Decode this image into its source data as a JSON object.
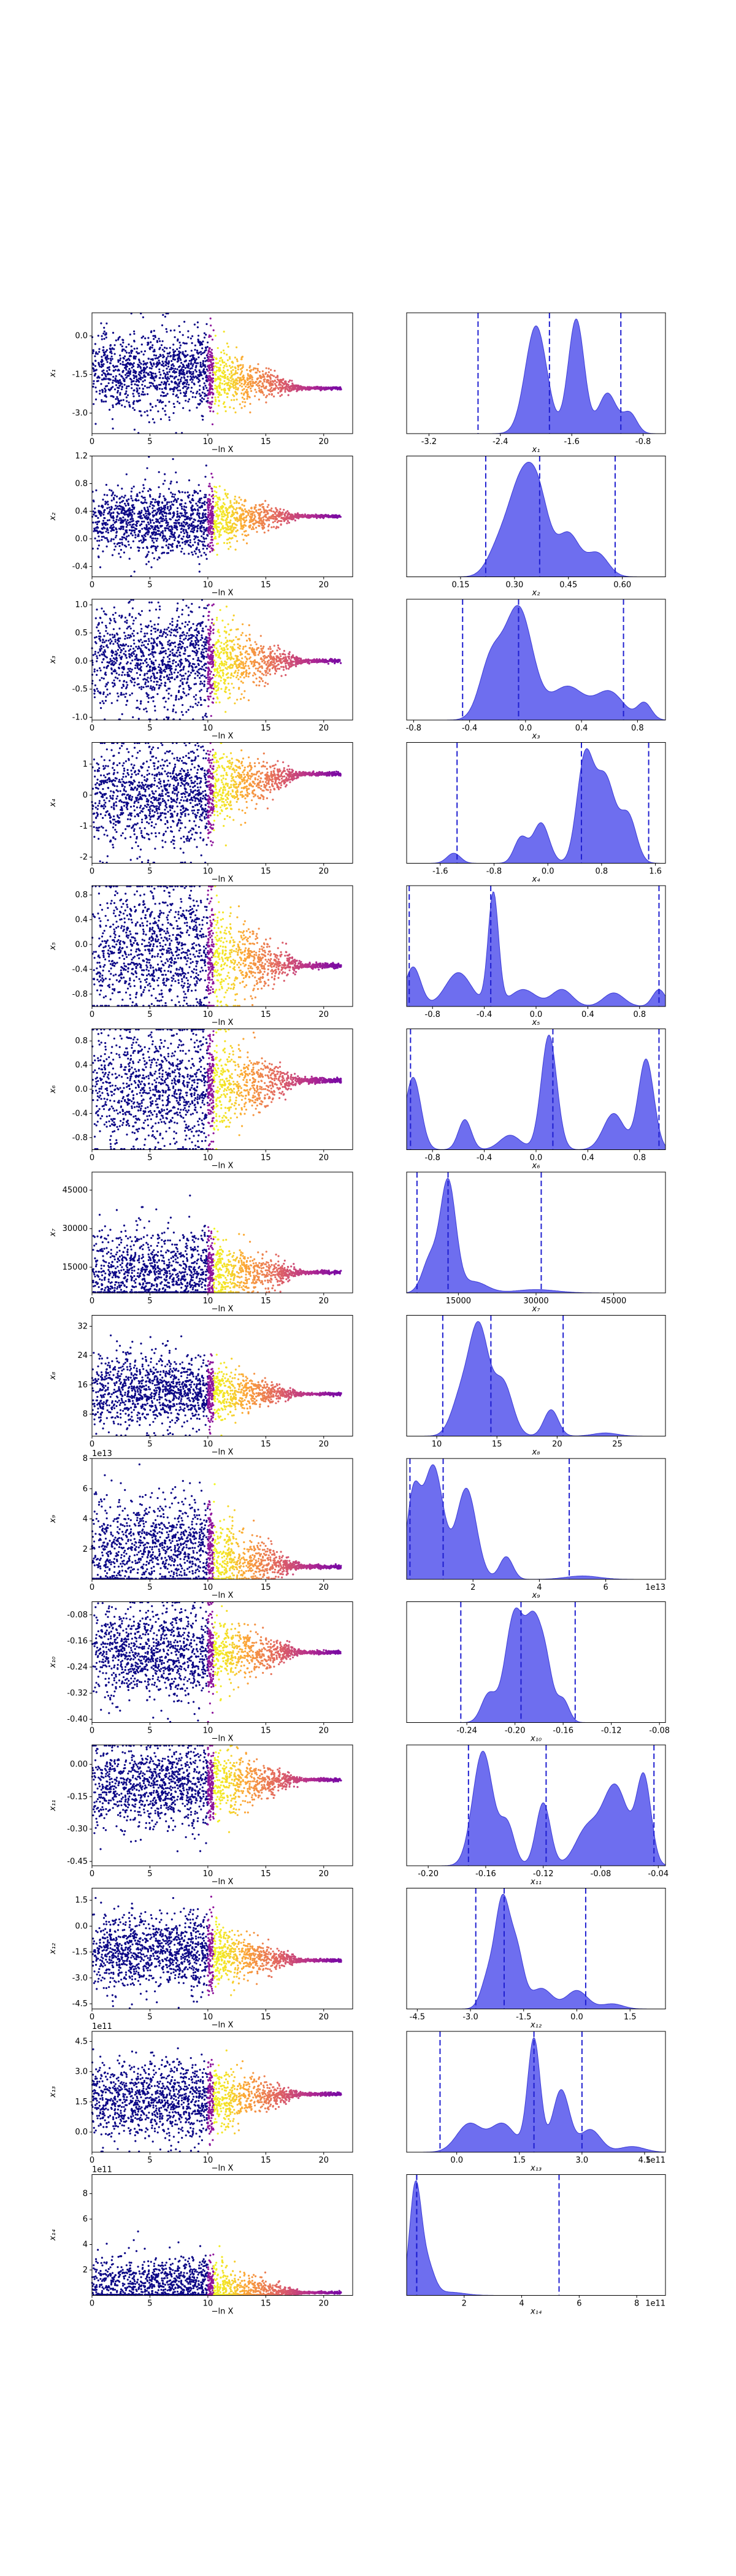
{
  "chart_data": {
    "type": "trace-plot",
    "colors": {
      "kde_fill": "#6666ee",
      "kde_line": "#3b3bd6",
      "quantile_line": "#1f1fd0",
      "trace_colormap": [
        "#0d0887",
        "#6a00a8",
        "#b12a90",
        "#e16462",
        "#fca636",
        "#f0f921"
      ]
    },
    "trace_x": {
      "label": "−ln X",
      "ticks": [
        0,
        5,
        10,
        15,
        20
      ],
      "range": [
        0,
        22.5
      ]
    },
    "rows": [
      {
        "name": "x1",
        "ylabel": "x₁",
        "trace_ticks": [
          "0.0",
          "-1.5",
          "-3.0"
        ],
        "trace_tick_values": [
          0.0,
          -1.5,
          -3.0
        ],
        "trace_range": [
          -3.8,
          0.9
        ],
        "converged": -2.05,
        "trace_center": -1.35,
        "trace_spread": 0.75,
        "kde_xlabel": "x₁",
        "kde_ticks": [
          "-3.2",
          "-2.4",
          "-1.6",
          "-0.8"
        ],
        "kde_tick_values": [
          -3.2,
          -2.4,
          -1.6,
          -0.8
        ],
        "kde_range": [
          -3.45,
          -0.55
        ],
        "kde_peaks": [
          [
            -2.0,
            0.8,
            0.12
          ],
          [
            -1.55,
            0.85,
            0.09
          ],
          [
            -1.2,
            0.3,
            0.1
          ],
          [
            -0.95,
            0.15,
            0.08
          ]
        ],
        "quantiles": [
          -2.65,
          -1.85,
          -1.05
        ]
      },
      {
        "name": "x2",
        "ylabel": "x₂",
        "trace_ticks": [
          "1.2",
          "0.8",
          "0.4",
          "0.0",
          "-0.4"
        ],
        "trace_tick_values": [
          1.2,
          0.8,
          0.4,
          0.0,
          -0.4
        ],
        "trace_range": [
          -0.55,
          1.2
        ],
        "converged": 0.33,
        "trace_center": 0.25,
        "trace_spread": 0.25,
        "kde_xlabel": "x₂",
        "kde_ticks": [
          "0.15",
          "0.30",
          "0.45",
          "0.60"
        ],
        "kde_tick_values": [
          0.15,
          0.3,
          0.45,
          0.6
        ],
        "kde_range": [
          0.0,
          0.72
        ],
        "kde_peaks": [
          [
            0.32,
            1.0,
            0.04
          ],
          [
            0.37,
            0.55,
            0.03
          ],
          [
            0.45,
            0.45,
            0.03
          ],
          [
            0.53,
            0.25,
            0.03
          ],
          [
            0.25,
            0.2,
            0.03
          ]
        ],
        "quantiles": [
          0.22,
          0.37,
          0.58
        ]
      },
      {
        "name": "x3",
        "ylabel": "x₃",
        "trace_ticks": [
          "1.0",
          "0.5",
          "0.0",
          "-0.5",
          "-1.0"
        ],
        "trace_tick_values": [
          1.0,
          0.5,
          0.0,
          -0.5,
          -1.0
        ],
        "trace_range": [
          -1.05,
          1.1
        ],
        "converged": 0.0,
        "trace_center": 0.0,
        "trace_spread": 0.45,
        "kde_xlabel": "x₃",
        "kde_ticks": [
          "-0.8",
          "-0.4",
          "0.0",
          "0.4",
          "0.8"
        ],
        "kde_tick_values": [
          -0.8,
          -0.4,
          0.0,
          0.4,
          0.8
        ],
        "kde_range": [
          -0.85,
          1.0
        ],
        "kde_peaks": [
          [
            -0.05,
            1.0,
            0.1
          ],
          [
            -0.25,
            0.5,
            0.08
          ],
          [
            0.3,
            0.3,
            0.12
          ],
          [
            0.6,
            0.25,
            0.1
          ],
          [
            0.85,
            0.15,
            0.05
          ]
        ],
        "quantiles": [
          -0.45,
          -0.05,
          0.7
        ]
      },
      {
        "name": "x4",
        "ylabel": "x₄",
        "trace_ticks": [
          "1",
          "0",
          "-1",
          "-2"
        ],
        "trace_tick_values": [
          1,
          0,
          -1,
          -2
        ],
        "trace_range": [
          -2.2,
          1.7
        ],
        "converged": 0.7,
        "trace_center": 0.0,
        "trace_spread": 0.8,
        "kde_xlabel": "x₄",
        "kde_ticks": [
          "-1.6",
          "-0.8",
          "0.0",
          "0.8",
          "1.6"
        ],
        "kde_tick_values": [
          -1.6,
          -0.8,
          0.0,
          0.8,
          1.6
        ],
        "kde_range": [
          -2.1,
          1.75
        ],
        "kde_peaks": [
          [
            0.55,
            1.0,
            0.12
          ],
          [
            0.85,
            0.85,
            0.15
          ],
          [
            1.2,
            0.45,
            0.12
          ],
          [
            -0.1,
            0.4,
            0.12
          ],
          [
            -0.4,
            0.25,
            0.1
          ],
          [
            -1.4,
            0.1,
            0.1
          ]
        ],
        "quantiles": [
          -1.35,
          0.5,
          1.5
        ]
      },
      {
        "name": "x5",
        "ylabel": "x₅",
        "trace_ticks": [
          "0.8",
          "0.4",
          "0.0",
          "-0.4",
          "-0.8"
        ],
        "trace_tick_values": [
          0.8,
          0.4,
          0.0,
          -0.4,
          -0.8
        ],
        "trace_range": [
          -1.0,
          0.95
        ],
        "converged": -0.35,
        "trace_center": -0.1,
        "trace_spread": 0.55,
        "kde_xlabel": "x₅",
        "kde_ticks": [
          "-0.8",
          "-0.4",
          "0.0",
          "0.4",
          "0.8"
        ],
        "kde_tick_values": [
          -0.8,
          -0.4,
          0.0,
          0.4,
          0.8
        ],
        "kde_range": [
          -1.0,
          1.0
        ],
        "kde_peaks": [
          [
            -0.33,
            1.0,
            0.04
          ],
          [
            -0.95,
            0.35,
            0.06
          ],
          [
            -0.6,
            0.3,
            0.1
          ],
          [
            -0.1,
            0.15,
            0.1
          ],
          [
            0.2,
            0.15,
            0.08
          ],
          [
            0.6,
            0.12,
            0.08
          ],
          [
            0.95,
            0.15,
            0.05
          ]
        ],
        "quantiles": [
          -0.98,
          -0.35,
          0.95
        ]
      },
      {
        "name": "x6",
        "ylabel": "x₆",
        "trace_ticks": [
          "0.8",
          "0.4",
          "0.0",
          "-0.4",
          "-0.8"
        ],
        "trace_tick_values": [
          0.8,
          0.4,
          0.0,
          -0.4,
          -0.8
        ],
        "trace_range": [
          -1.0,
          1.0
        ],
        "converged": 0.15,
        "trace_center": 0.0,
        "trace_spread": 0.55,
        "kde_xlabel": "x₆",
        "kde_ticks": [
          "-0.8",
          "-0.4",
          "0.0",
          "0.4",
          "0.8"
        ],
        "kde_tick_values": [
          -0.8,
          -0.4,
          0.0,
          0.4,
          0.8
        ],
        "kde_range": [
          -1.0,
          1.0
        ],
        "kde_peaks": [
          [
            0.1,
            0.95,
            0.06
          ],
          [
            -0.95,
            0.6,
            0.06
          ],
          [
            -0.55,
            0.25,
            0.05
          ],
          [
            0.85,
            0.75,
            0.06
          ],
          [
            0.6,
            0.3,
            0.08
          ],
          [
            -0.2,
            0.12,
            0.08
          ]
        ],
        "quantiles": [
          -0.97,
          0.13,
          0.95
        ]
      },
      {
        "name": "x7",
        "ylabel": "x₇",
        "trace_ticks": [
          "45000",
          "30000",
          "15000"
        ],
        "trace_tick_values": [
          45000,
          30000,
          15000
        ],
        "trace_range": [
          5000,
          52000
        ],
        "converged": 13000,
        "trace_center": 12000,
        "trace_spread": 9000,
        "kde_xlabel": "x₇",
        "kde_ticks": [
          "15000",
          "30000",
          "45000"
        ],
        "kde_tick_values": [
          15000,
          30000,
          45000
        ],
        "kde_range": [
          5000,
          55000
        ],
        "kde_peaks": [
          [
            13000,
            1.0,
            1500
          ],
          [
            9500,
            0.3,
            1500
          ],
          [
            18000,
            0.1,
            2500
          ],
          [
            30000,
            0.03,
            4000
          ]
        ],
        "quantiles": [
          7000,
          13000,
          31000
        ]
      },
      {
        "name": "x8",
        "ylabel": "x₈",
        "trace_ticks": [
          "32",
          "24",
          "16",
          "8"
        ],
        "trace_tick_values": [
          32,
          24,
          16,
          8
        ],
        "trace_range": [
          2,
          35
        ],
        "converged": 13.5,
        "trace_center": 14,
        "trace_spread": 5,
        "kde_xlabel": "x₈",
        "kde_ticks": [
          "10",
          "15",
          "20",
          "25"
        ],
        "kde_tick_values": [
          10,
          15,
          20,
          25
        ],
        "kde_range": [
          7.5,
          29
        ],
        "kde_peaks": [
          [
            13.5,
            1.0,
            0.8
          ],
          [
            15.5,
            0.5,
            0.8
          ],
          [
            12,
            0.35,
            0.8
          ],
          [
            19.5,
            0.25,
            0.6
          ],
          [
            24,
            0.03,
            1
          ]
        ],
        "quantiles": [
          10.5,
          14.5,
          20.5
        ]
      },
      {
        "name": "x9",
        "ylabel": "x₉",
        "sci_trace": "1e13",
        "sci_kde": "1e13",
        "trace_ticks": [
          "8",
          "6",
          "4",
          "2"
        ],
        "trace_tick_values": [
          8,
          6,
          4,
          2
        ],
        "trace_range": [
          0,
          8
        ],
        "converged": 0.8,
        "trace_center": 2.0,
        "trace_spread": 1.8,
        "kde_xlabel": "x₉",
        "kde_ticks": [
          "2",
          "4",
          "6"
        ],
        "kde_tick_values": [
          2,
          4,
          6
        ],
        "kde_range": [
          0,
          7.8
        ],
        "kde_peaks": [
          [
            0.8,
            1.0,
            0.3
          ],
          [
            0.2,
            0.7,
            0.2
          ],
          [
            1.8,
            0.8,
            0.3
          ],
          [
            3.0,
            0.2,
            0.2
          ],
          [
            5.3,
            0.03,
            0.5
          ]
        ],
        "quantiles": [
          0.1,
          1.1,
          4.9
        ]
      },
      {
        "name": "x10",
        "ylabel": "x₁₀",
        "trace_ticks": [
          "-0.08",
          "-0.16",
          "-0.24",
          "-0.32",
          "-0.40"
        ],
        "trace_tick_values": [
          -0.08,
          -0.16,
          -0.24,
          -0.32,
          -0.4
        ],
        "trace_range": [
          -0.41,
          -0.04
        ],
        "converged": -0.195,
        "trace_center": -0.2,
        "trace_spread": 0.07,
        "kde_xlabel": "x₁₀",
        "kde_ticks": [
          "-0.24",
          "-0.20",
          "-0.16",
          "-0.12",
          "-0.08"
        ],
        "kde_tick_values": [
          -0.24,
          -0.2,
          -0.16,
          -0.12,
          -0.08
        ],
        "kde_range": [
          -0.29,
          -0.075
        ],
        "kde_peaks": [
          [
            -0.2,
            1.0,
            0.008
          ],
          [
            -0.185,
            0.7,
            0.006
          ],
          [
            -0.175,
            0.55,
            0.006
          ],
          [
            -0.222,
            0.25,
            0.006
          ],
          [
            -0.16,
            0.2,
            0.005
          ]
        ],
        "quantiles": [
          -0.245,
          -0.195,
          -0.15
        ]
      },
      {
        "name": "x11",
        "ylabel": "x₁₁",
        "trace_ticks": [
          "0.00",
          "-0.15",
          "-0.30",
          "-0.45"
        ],
        "trace_tick_values": [
          0.0,
          -0.15,
          -0.3,
          -0.45
        ],
        "trace_range": [
          -0.47,
          0.09
        ],
        "converged": -0.07,
        "trace_center": -0.1,
        "trace_spread": 0.1,
        "kde_xlabel": "x₁₁",
        "kde_ticks": [
          "-0.20",
          "-0.16",
          "-0.12",
          "-0.08",
          "-0.04"
        ],
        "kde_tick_values": [
          -0.2,
          -0.16,
          -0.12,
          -0.08,
          -0.04
        ],
        "kde_range": [
          -0.215,
          -0.035
        ],
        "kde_peaks": [
          [
            -0.162,
            1.0,
            0.007
          ],
          [
            -0.145,
            0.35,
            0.005
          ],
          [
            -0.12,
            0.55,
            0.005
          ],
          [
            -0.07,
            0.7,
            0.009
          ],
          [
            -0.05,
            0.75,
            0.005
          ],
          [
            -0.09,
            0.3,
            0.008
          ]
        ],
        "quantiles": [
          -0.172,
          -0.118,
          -0.043
        ]
      },
      {
        "name": "x12",
        "ylabel": "x₁₂",
        "trace_ticks": [
          "1.5",
          "0.0",
          "-1.5",
          "-3.0",
          "-4.5"
        ],
        "trace_tick_values": [
          1.5,
          0.0,
          -1.5,
          -3.0,
          -4.5
        ],
        "trace_range": [
          -4.8,
          2.2
        ],
        "converged": -2.0,
        "trace_center": -1.5,
        "trace_spread": 1.1,
        "kde_xlabel": "x₁₂",
        "kde_ticks": [
          "-4.5",
          "-3.0",
          "-1.5",
          "0.0",
          "1.5"
        ],
        "kde_tick_values": [
          -4.5,
          -3.0,
          -1.5,
          0.0,
          1.5
        ],
        "kde_range": [
          -4.8,
          2.5
        ],
        "kde_peaks": [
          [
            -2.1,
            1.0,
            0.2
          ],
          [
            -1.7,
            0.55,
            0.2
          ],
          [
            -2.5,
            0.3,
            0.2
          ],
          [
            -1.0,
            0.2,
            0.3
          ],
          [
            0.0,
            0.18,
            0.3
          ],
          [
            1.0,
            0.05,
            0.3
          ]
        ],
        "quantiles": [
          -2.85,
          -2.05,
          0.25
        ]
      },
      {
        "name": "x13",
        "ylabel": "x₁₃",
        "sci_trace": "1e11",
        "sci_kde": "1e11",
        "trace_ticks": [
          "4.5",
          "3.0",
          "1.5",
          "0.0"
        ],
        "trace_tick_values": [
          4.5,
          3.0,
          1.5,
          0.0
        ],
        "trace_range": [
          -1.0,
          5.0
        ],
        "converged": 1.9,
        "trace_center": 1.5,
        "trace_spread": 1.0,
        "kde_xlabel": "x₁₃",
        "kde_ticks": [
          "0.0",
          "1.5",
          "3.0",
          "4.5"
        ],
        "kde_tick_values": [
          0.0,
          1.5,
          3.0,
          4.5
        ],
        "kde_range": [
          -1.2,
          5.0
        ],
        "kde_peaks": [
          [
            1.85,
            1.0,
            0.15
          ],
          [
            2.5,
            0.55,
            0.2
          ],
          [
            0.3,
            0.25,
            0.3
          ],
          [
            1.1,
            0.25,
            0.3
          ],
          [
            3.2,
            0.2,
            0.25
          ],
          [
            4.2,
            0.05,
            0.3
          ]
        ],
        "quantiles": [
          -0.4,
          1.85,
          3.0
        ]
      },
      {
        "name": "x14",
        "ylabel": "x₁₄",
        "sci_trace": "1e11",
        "sci_kde": "1e11",
        "trace_ticks": [
          "8",
          "6",
          "4",
          "2"
        ],
        "trace_tick_values": [
          8,
          6,
          4,
          2
        ],
        "trace_range": [
          0,
          9.5
        ],
        "converged": 0.2,
        "trace_center": 0.6,
        "trace_spread": 1.2,
        "kde_xlabel": "x₁₄",
        "kde_ticks": [
          "2",
          "4",
          "6",
          "8"
        ],
        "kde_tick_values": [
          2,
          4,
          6,
          8
        ],
        "kde_range": [
          0,
          9.0
        ],
        "kde_peaks": [
          [
            0.3,
            1.0,
            0.2
          ],
          [
            0.7,
            0.3,
            0.25
          ],
          [
            1.5,
            0.03,
            0.5
          ]
        ],
        "quantiles": [
          0.35,
          0.35,
          5.3
        ]
      }
    ]
  }
}
